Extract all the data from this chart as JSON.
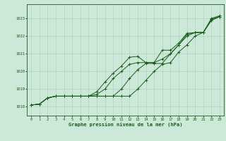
{
  "xlabel": "Graphe pression niveau de la mer (hPa)",
  "xlim": [
    -0.5,
    23.5
  ],
  "ylim": [
    1017.5,
    1023.8
  ],
  "yticks": [
    1018,
    1019,
    1020,
    1021,
    1022,
    1023
  ],
  "xticks": [
    0,
    1,
    2,
    3,
    4,
    5,
    6,
    7,
    8,
    9,
    10,
    11,
    12,
    13,
    14,
    15,
    16,
    17,
    18,
    19,
    20,
    21,
    22,
    23
  ],
  "bg_color": "#cce8d8",
  "grid_color": "#aaccb8",
  "line_color": "#1a5c1a",
  "line1": [
    1018.1,
    1018.15,
    1018.5,
    1018.6,
    1018.6,
    1018.6,
    1018.6,
    1018.6,
    1018.6,
    1018.6,
    1018.6,
    1018.6,
    1018.6,
    1019.0,
    1019.5,
    1020.0,
    1020.4,
    1020.5,
    1021.1,
    1021.5,
    1022.0,
    1022.2,
    1022.9,
    1023.1
  ],
  "line2": [
    1018.1,
    1018.15,
    1018.5,
    1018.6,
    1018.6,
    1018.6,
    1018.6,
    1018.6,
    1018.7,
    1019.0,
    1019.6,
    1020.0,
    1020.4,
    1020.5,
    1020.5,
    1020.5,
    1020.7,
    1021.0,
    1021.5,
    1022.0,
    1022.2,
    1022.2,
    1022.9,
    1023.1
  ],
  "line3": [
    1018.1,
    1018.15,
    1018.5,
    1018.6,
    1018.6,
    1018.6,
    1018.6,
    1018.6,
    1018.6,
    1018.6,
    1018.6,
    1019.0,
    1019.6,
    1020.1,
    1020.45,
    1020.45,
    1020.45,
    1021.0,
    1021.5,
    1022.1,
    1022.2,
    1022.2,
    1022.95,
    1023.1
  ],
  "line4": [
    1018.1,
    1018.15,
    1018.5,
    1018.6,
    1018.6,
    1018.6,
    1018.6,
    1018.6,
    1018.85,
    1019.4,
    1019.9,
    1020.3,
    1020.8,
    1020.85,
    1020.5,
    1020.5,
    1021.2,
    1021.2,
    1021.6,
    1022.15,
    1022.2,
    1022.2,
    1023.0,
    1023.15
  ]
}
